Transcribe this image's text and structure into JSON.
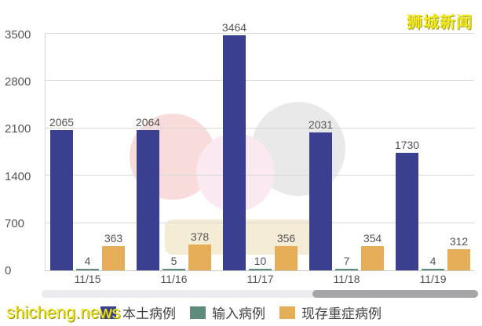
{
  "watermark": {
    "brand": "狮城新闻",
    "url": "shicheng.news"
  },
  "colors": {
    "local": "#3b3f8f",
    "imported": "#5e8b7a",
    "severe": "#e5ad58",
    "grid": "#d8d8d8"
  },
  "axis": {
    "y_ticks": [
      "3500",
      "2800",
      "2100",
      "1400",
      "700",
      "0"
    ]
  },
  "legend": [
    {
      "label": "本土病例",
      "color": "#3b3f8f"
    },
    {
      "label": "输入病例",
      "color": "#5e8b7a"
    },
    {
      "label": "现存重症病例",
      "color": "#e5ad58"
    }
  ],
  "groups": [
    {
      "date": "11/15",
      "local": "2065",
      "imported": "4",
      "severe": "363"
    },
    {
      "date": "11/16",
      "local": "2064",
      "imported": "5",
      "severe": "378"
    },
    {
      "date": "11/17",
      "local": "3464",
      "imported": "10",
      "severe": "356"
    },
    {
      "date": "11/18",
      "local": "2031",
      "imported": "7",
      "severe": "354"
    },
    {
      "date": "11/19",
      "local": "1730",
      "imported": "4",
      "severe": "312"
    }
  ],
  "chart_data": {
    "type": "bar",
    "title": "",
    "xlabel": "",
    "ylabel": "",
    "categories": [
      "11/15",
      "11/16",
      "11/17",
      "11/18",
      "11/19"
    ],
    "series": [
      {
        "name": "本土病例",
        "values": [
          2065,
          2064,
          3464,
          2031,
          1730
        ]
      },
      {
        "name": "输入病例",
        "values": [
          4,
          5,
          10,
          7,
          4
        ]
      },
      {
        "name": "现存重症病例",
        "values": [
          363,
          378,
          356,
          354,
          312
        ]
      }
    ],
    "ylim": [
      0,
      3500
    ],
    "yticks": [
      0,
      700,
      1400,
      2100,
      2800,
      3500
    ],
    "grid": true,
    "legend_position": "bottom"
  }
}
